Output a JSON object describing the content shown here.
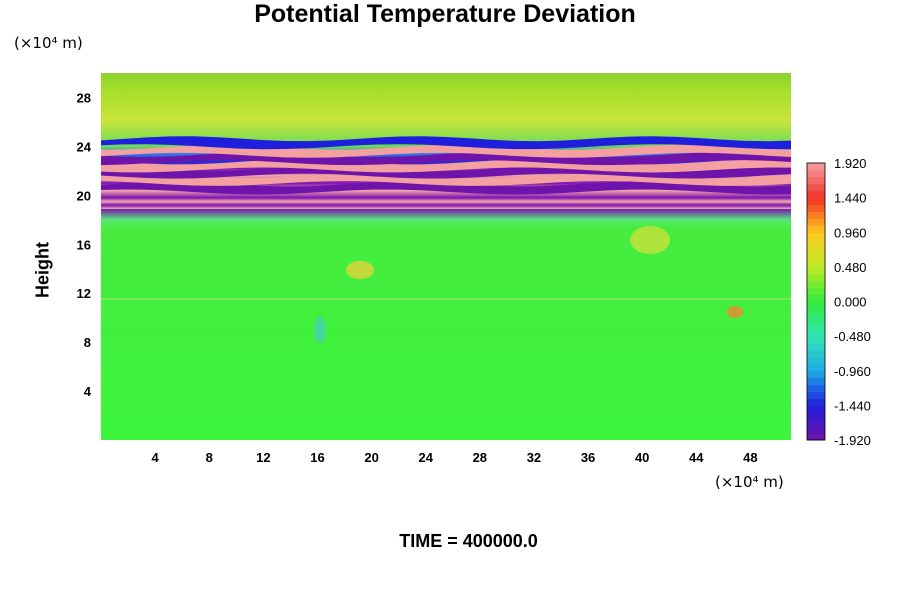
{
  "chart_data": {
    "type": "heatmap",
    "title": "Potential Temperature Deviation",
    "ylabel": "Height",
    "xlabel": "",
    "x_unit": "(×10⁴ m)",
    "y_unit": "(×10⁴ m)",
    "xlim": [
      0,
      51
    ],
    "ylim": [
      0,
      30
    ],
    "x_ticks": [
      4,
      8,
      12,
      16,
      20,
      24,
      28,
      32,
      36,
      40,
      44,
      48
    ],
    "y_ticks": [
      4,
      8,
      12,
      16,
      20,
      24,
      28
    ],
    "colorbar": {
      "min": -1.92,
      "max": 1.92,
      "labels": [
        "1.920",
        "1.440",
        "0.960",
        "0.480",
        "0.000",
        "-0.480",
        "-0.960",
        "-1.440",
        "-1.920"
      ]
    },
    "bands": [
      {
        "y_center": 20.6,
        "value": -1.92
      },
      {
        "y_center": 21.3,
        "value": 1.92
      },
      {
        "y_center": 21.9,
        "value": -1.92
      },
      {
        "y_center": 22.4,
        "value": 1.92
      },
      {
        "y_center": 23.0,
        "value": -1.92
      },
      {
        "y_center": 23.6,
        "value": 1.92
      },
      {
        "y_center": 24.3,
        "value": -1.44
      }
    ],
    "footer": "TIME = 400000.0"
  }
}
